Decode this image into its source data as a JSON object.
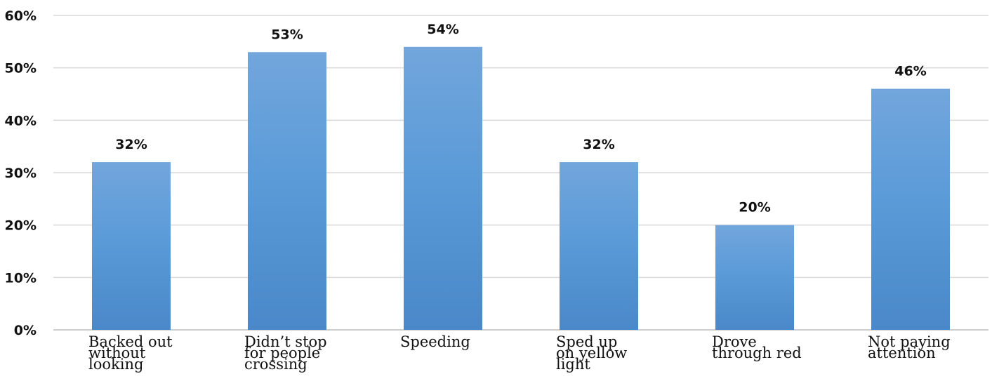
{
  "chart_data": {
    "type": "bar",
    "title": "",
    "xlabel": "",
    "ylabel": "",
    "categories": [
      [
        "Backed out",
        "without",
        "looking"
      ],
      [
        "Didn’t stop",
        "for people",
        "crossing"
      ],
      [
        "Speeding"
      ],
      [
        "Sped up",
        "on yellow",
        "light"
      ],
      [
        "Drove",
        "through red"
      ],
      [
        "Not paying",
        "attention"
      ]
    ],
    "values": [
      32,
      53,
      54,
      32,
      20,
      46
    ],
    "value_labels": [
      "32%",
      "53%",
      "54%",
      "32%",
      "20%",
      "46%"
    ],
    "ylim": [
      0,
      60
    ],
    "yticks": [
      0,
      10,
      20,
      30,
      40,
      50,
      60
    ],
    "ytick_labels": [
      "0%",
      "10%",
      "20%",
      "30%",
      "40%",
      "50%",
      "60%"
    ],
    "grid": true,
    "legend": "none",
    "bar_color_top": "#72a6dc",
    "bar_color_mid": "#5b9bd8",
    "bar_color_bottom": "#4a88c9"
  }
}
